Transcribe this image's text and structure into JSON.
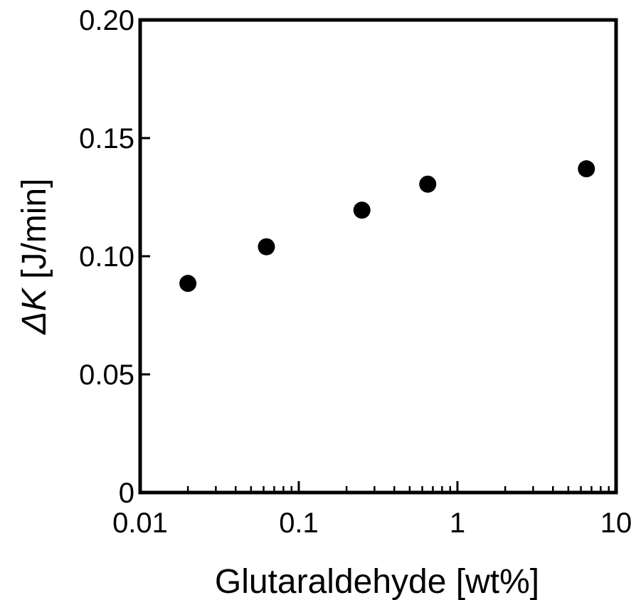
{
  "chart_data": {
    "type": "scatter",
    "xscale": "log",
    "xlim": [
      0.01,
      10
    ],
    "ylim": [
      0,
      0.2
    ],
    "xticks": [
      {
        "value": 0.01,
        "label": "0.01"
      },
      {
        "value": 0.1,
        "label": "0.1"
      },
      {
        "value": 1,
        "label": "1"
      },
      {
        "value": 10,
        "label": "10"
      }
    ],
    "yticks": [
      {
        "value": 0,
        "label": "0"
      },
      {
        "value": 0.05,
        "label": "0.05"
      },
      {
        "value": 0.1,
        "label": "0.10"
      },
      {
        "value": 0.15,
        "label": "0.15"
      },
      {
        "value": 0.2,
        "label": "0.20"
      }
    ],
    "xlabel": "Glutaraldehyde [wt%]",
    "ylabel": {
      "symbol": "ΔK",
      "unit": " [J/min]"
    },
    "grid": false,
    "marker_color": "#000000",
    "points": [
      {
        "x": 0.02,
        "y": 0.0885
      },
      {
        "x": 0.0625,
        "y": 0.104
      },
      {
        "x": 0.25,
        "y": 0.1195
      },
      {
        "x": 0.65,
        "y": 0.1305
      },
      {
        "x": 6.5,
        "y": 0.137
      }
    ]
  }
}
